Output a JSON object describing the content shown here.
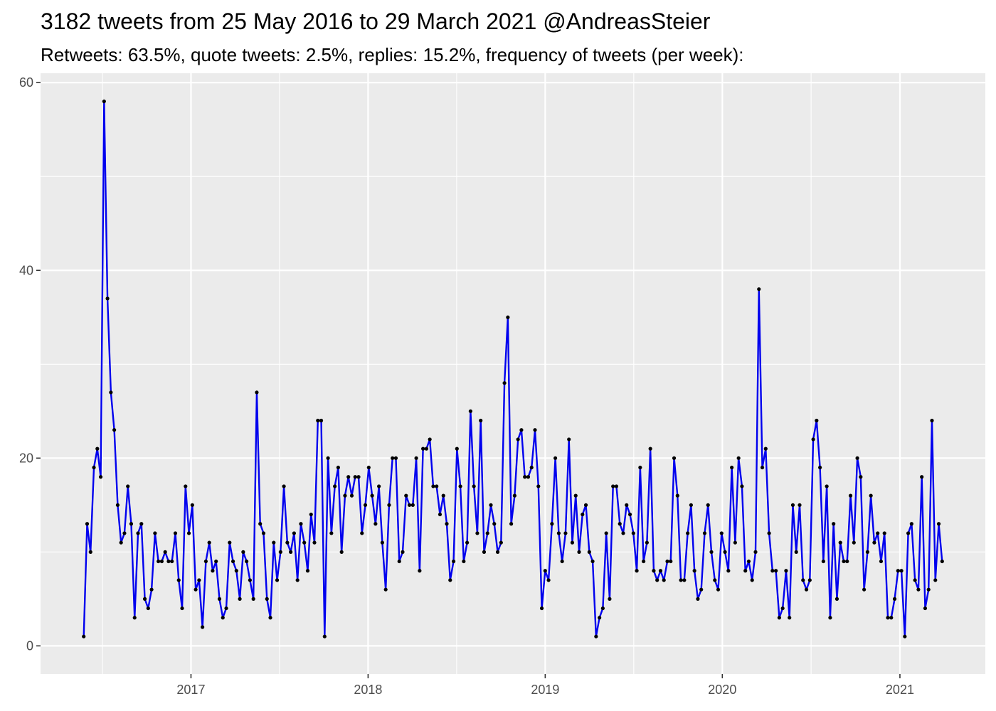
{
  "chart_data": {
    "type": "line",
    "title": "3182 tweets from 25 May 2016 to 29 March 2021 @AndreasSteier",
    "subtitle": "Retweets: 63.5%, quote tweets: 2.5%, replies: 15.2%, frequency of tweets (per week):",
    "xlabel": "",
    "ylabel": "",
    "x_start": "2016-05-25",
    "x_end": "2021-03-29",
    "xlim": [
      "2016-02-26",
      "2021-06-26"
    ],
    "ylim": [
      -3,
      61
    ],
    "x_ticks": [
      {
        "label": "2017",
        "date": "2017-01-01"
      },
      {
        "label": "2018",
        "date": "2018-01-01"
      },
      {
        "label": "2019",
        "date": "2019-01-01"
      },
      {
        "label": "2020",
        "date": "2020-01-01"
      },
      {
        "label": "2021",
        "date": "2021-01-01"
      }
    ],
    "y_ticks": [
      0,
      20,
      40,
      60
    ],
    "grid": true,
    "colors": {
      "panel_background": "#ebebeb",
      "grid_line": "#ffffff",
      "line": "#0000ee",
      "point": "#000000"
    },
    "series": [
      {
        "values": [
          1,
          13,
          10,
          19,
          21,
          18,
          58,
          37,
          27,
          23,
          15,
          11,
          12,
          17,
          13,
          3,
          12,
          13,
          5,
          4,
          6,
          12,
          9,
          9,
          10,
          9,
          9,
          12,
          7,
          4,
          17,
          12,
          15,
          6,
          7,
          2,
          9,
          11,
          8,
          9,
          5,
          3,
          4,
          11,
          9,
          8,
          5,
          10,
          9,
          7,
          5,
          27,
          13,
          12,
          5,
          3,
          11,
          7,
          10,
          17,
          11,
          10,
          12,
          7,
          13,
          11,
          8,
          14,
          11,
          24,
          24,
          1,
          20,
          12,
          17,
          19,
          10,
          16,
          18,
          16,
          18,
          18,
          12,
          15,
          19,
          16,
          13,
          17,
          11,
          6,
          15,
          20,
          20,
          9,
          10,
          16,
          15,
          15,
          20,
          8,
          21,
          21,
          22,
          17,
          17,
          14,
          16,
          13,
          7,
          9,
          21,
          17,
          9,
          11,
          25,
          17,
          12,
          24,
          10,
          12,
          15,
          13,
          10,
          11,
          28,
          35,
          13,
          16,
          22,
          23,
          18,
          18,
          19,
          23,
          17,
          4,
          8,
          7,
          13,
          20,
          12,
          9,
          12,
          22,
          11,
          16,
          10,
          14,
          15,
          10,
          9,
          1,
          3,
          4,
          12,
          5,
          17,
          17,
          13,
          12,
          15,
          14,
          12,
          8,
          19,
          9,
          11,
          21,
          8,
          7,
          8,
          7,
          9,
          9,
          20,
          16,
          7,
          7,
          12,
          15,
          8,
          5,
          6,
          12,
          15,
          10,
          7,
          6,
          12,
          10,
          8,
          19,
          11,
          20,
          17,
          8,
          9,
          7,
          10,
          38,
          19,
          21,
          12,
          8,
          8,
          3,
          4,
          8,
          3,
          15,
          10,
          15,
          7,
          6,
          7,
          22,
          24,
          19,
          9,
          17,
          3,
          13,
          5,
          11,
          9,
          9,
          16,
          11,
          20,
          18,
          6,
          10,
          16,
          11,
          12,
          9,
          12,
          3,
          3,
          5,
          8,
          8,
          1,
          12,
          13,
          7,
          6,
          18,
          4,
          6,
          24,
          7,
          13,
          9
        ]
      }
    ]
  }
}
